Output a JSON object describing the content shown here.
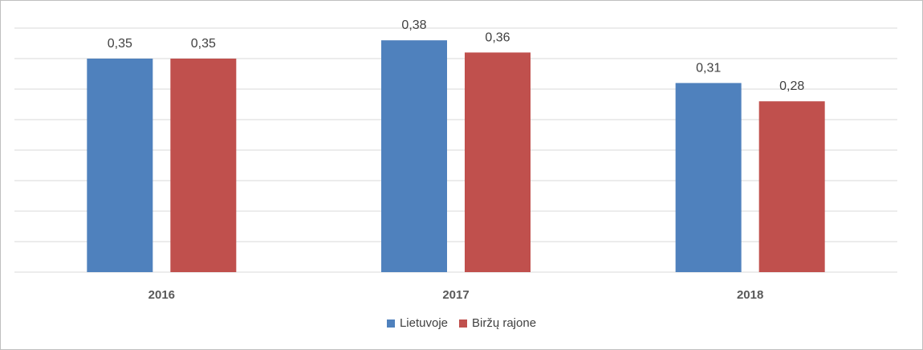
{
  "chart_data": {
    "type": "bar",
    "categories": [
      "2016",
      "2017",
      "2018"
    ],
    "series": [
      {
        "name": "Lietuvoje",
        "values": [
          0.35,
          0.38,
          0.31
        ],
        "labels": [
          "0,35",
          "0,38",
          "0,31"
        ],
        "color": "#4f81bd"
      },
      {
        "name": "Biržų rajone",
        "values": [
          0.35,
          0.36,
          0.28
        ],
        "labels": [
          "0,35",
          "0,36",
          "0,28"
        ],
        "color": "#c0504d"
      }
    ],
    "ylim": [
      0,
      0.4
    ],
    "grid": true,
    "legend_position": "bottom",
    "title": "",
    "xlabel": "",
    "ylabel": ""
  }
}
